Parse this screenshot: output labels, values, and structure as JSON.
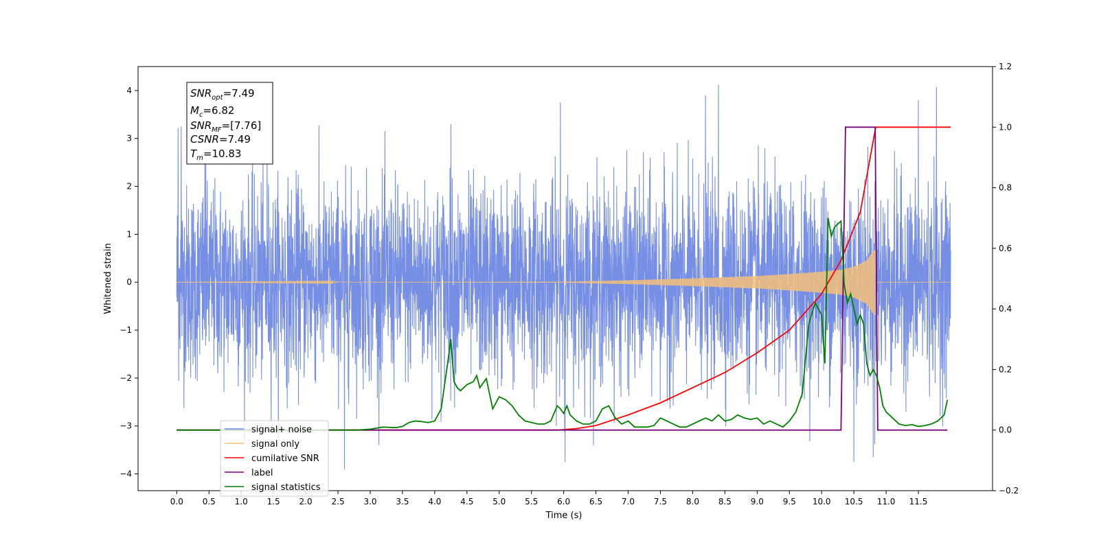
{
  "chart_data": {
    "type": "line",
    "xlabel": "Time (s)",
    "ylabel": "Whitened strain",
    "xlim": [
      -0.6,
      12.65
    ],
    "ylim": [
      -4.35,
      4.5
    ],
    "y2lim": [
      -0.2,
      1.2
    ],
    "grid": false,
    "legend_placement": "lower-left",
    "x_ticks": [
      "0.0",
      "0.5",
      "1.0",
      "1.5",
      "2.0",
      "2.5",
      "3.0",
      "3.5",
      "4.0",
      "4.5",
      "5.0",
      "5.5",
      "6.0",
      "6.5",
      "7.0",
      "7.5",
      "8.0",
      "8.5",
      "9.0",
      "9.5",
      "10.0",
      "10.5",
      "11.0",
      "11.5"
    ],
    "y_ticks": [
      "4",
      "3",
      "2",
      "1",
      "0",
      "−1",
      "−2",
      "−3",
      "−4"
    ],
    "y2_ticks": [
      "1.2",
      "1.0",
      "0.8",
      "0.6",
      "0.4",
      "0.2",
      "0.0",
      "−0.2"
    ],
    "stats": {
      "snr_opt": {
        "name": "SNR",
        "sub": "opt",
        "value": "=7.49"
      },
      "mc": {
        "name": "M",
        "sub": "c",
        "value": "=6.82"
      },
      "snr_mf": {
        "name": "SNR",
        "sub": "MF",
        "value": "=[7.76]"
      },
      "csnr": {
        "name": "CSNR",
        "sub": "",
        "value": "=7.49"
      },
      "tm": {
        "name": "T",
        "sub": "m",
        "value": "=10.83"
      }
    },
    "series": [
      {
        "name": "signal+ noise",
        "color": "#6a86e3",
        "axis": "left",
        "kind": "noise",
        "t_range": [
          0,
          12.0
        ],
        "typical_range": [
          -1.6,
          1.6
        ],
        "peaks": [
          {
            "t": 0.02,
            "y": 3.22
          },
          {
            "t": 0.07,
            "y": 3.25
          },
          {
            "t": 0.45,
            "y": 3.18
          },
          {
            "t": 1.4,
            "y": 3.18
          },
          {
            "t": 2.6,
            "y": -3.9
          },
          {
            "t": 4.25,
            "y": 3.3
          },
          {
            "t": 5.95,
            "y": 3.75
          },
          {
            "t": 6.02,
            "y": -3.75
          },
          {
            "t": 8.2,
            "y": 3.9
          },
          {
            "t": 8.4,
            "y": 4.12
          },
          {
            "t": 10.5,
            "y": -3.75
          },
          {
            "t": 10.8,
            "y": -3.65
          },
          {
            "t": 11.5,
            "y": 3.8
          },
          {
            "t": 11.78,
            "y": 4.07
          }
        ]
      },
      {
        "name": "signal only",
        "color": "#f5c07a",
        "axis": "left",
        "kind": "chirp",
        "t_start": 0,
        "t_end": 10.83,
        "after_t_end": 12.0,
        "envelope_t": [
          0,
          6.0,
          7.0,
          8.0,
          9.0,
          9.5,
          10.0,
          10.3,
          10.5,
          10.7,
          10.8,
          10.83
        ],
        "envelope_y": [
          0.0,
          0.01,
          0.04,
          0.08,
          0.13,
          0.17,
          0.22,
          0.26,
          0.32,
          0.45,
          0.65,
          0.68
        ]
      },
      {
        "name": "cumilative SNR",
        "color": "#ff0000",
        "axis": "right",
        "x": [
          0,
          5.9,
          6.2,
          6.5,
          7.0,
          7.5,
          8.0,
          8.5,
          9.0,
          9.5,
          10.0,
          10.3,
          10.6,
          10.83,
          10.84,
          12.0
        ],
        "y": [
          0.0,
          0.0,
          0.005,
          0.015,
          0.05,
          0.09,
          0.14,
          0.19,
          0.255,
          0.33,
          0.45,
          0.56,
          0.72,
          0.99,
          1.0,
          1.0
        ]
      },
      {
        "name": "label",
        "color": "#7b007b",
        "axis": "right",
        "x": [
          0,
          10.3,
          10.37,
          10.83,
          10.87,
          11.95
        ],
        "y": [
          0.0,
          0.0,
          1.0,
          1.0,
          0.0,
          0.0
        ]
      },
      {
        "name": "signal statistics",
        "color": "#007f00",
        "axis": "right",
        "x": [
          0,
          2.8,
          3.0,
          3.2,
          3.4,
          3.5,
          3.6,
          3.7,
          3.8,
          3.9,
          4.0,
          4.1,
          4.2,
          4.25,
          4.3,
          4.35,
          4.4,
          4.5,
          4.6,
          4.65,
          4.7,
          4.8,
          4.9,
          5.0,
          5.1,
          5.2,
          5.3,
          5.4,
          5.5,
          5.6,
          5.7,
          5.8,
          5.9,
          5.95,
          6.0,
          6.05,
          6.1,
          6.2,
          6.3,
          6.4,
          6.5,
          6.6,
          6.7,
          6.8,
          6.9,
          7.0,
          7.1,
          7.2,
          7.3,
          7.4,
          7.5,
          7.6,
          7.7,
          7.8,
          7.9,
          8.0,
          8.1,
          8.2,
          8.3,
          8.4,
          8.5,
          8.6,
          8.7,
          8.8,
          8.9,
          9.0,
          9.1,
          9.2,
          9.3,
          9.4,
          9.5,
          9.6,
          9.7,
          9.8,
          9.9,
          10.0,
          10.05,
          10.1,
          10.15,
          10.2,
          10.3,
          10.35,
          10.4,
          10.45,
          10.5,
          10.55,
          10.6,
          10.65,
          10.7,
          10.75,
          10.8,
          10.85,
          10.9,
          10.95,
          11.0,
          11.1,
          11.2,
          11.3,
          11.4,
          11.5,
          11.6,
          11.7,
          11.8,
          11.9,
          11.95
        ],
        "y": [
          0.0,
          0.0,
          0.003,
          0.01,
          0.008,
          0.012,
          0.025,
          0.03,
          0.028,
          0.025,
          0.03,
          0.07,
          0.22,
          0.3,
          0.16,
          0.14,
          0.13,
          0.15,
          0.16,
          0.18,
          0.14,
          0.17,
          0.07,
          0.11,
          0.1,
          0.08,
          0.05,
          0.03,
          0.025,
          0.02,
          0.02,
          0.03,
          0.08,
          0.07,
          0.055,
          0.08,
          0.05,
          0.03,
          0.02,
          0.02,
          0.03,
          0.07,
          0.08,
          0.04,
          0.02,
          0.03,
          0.01,
          0.01,
          0.01,
          0.015,
          0.04,
          0.03,
          0.02,
          0.01,
          0.01,
          0.02,
          0.03,
          0.04,
          0.03,
          0.05,
          0.03,
          0.035,
          0.05,
          0.04,
          0.035,
          0.04,
          0.02,
          0.03,
          0.02,
          0.01,
          0.03,
          0.06,
          0.12,
          0.35,
          0.42,
          0.38,
          0.22,
          0.7,
          0.64,
          0.67,
          0.69,
          0.48,
          0.42,
          0.45,
          0.4,
          0.35,
          0.38,
          0.35,
          0.22,
          0.18,
          0.2,
          0.18,
          0.14,
          0.08,
          0.06,
          0.04,
          0.02,
          0.015,
          0.018,
          0.012,
          0.015,
          0.02,
          0.03,
          0.05,
          0.1
        ]
      }
    ]
  }
}
